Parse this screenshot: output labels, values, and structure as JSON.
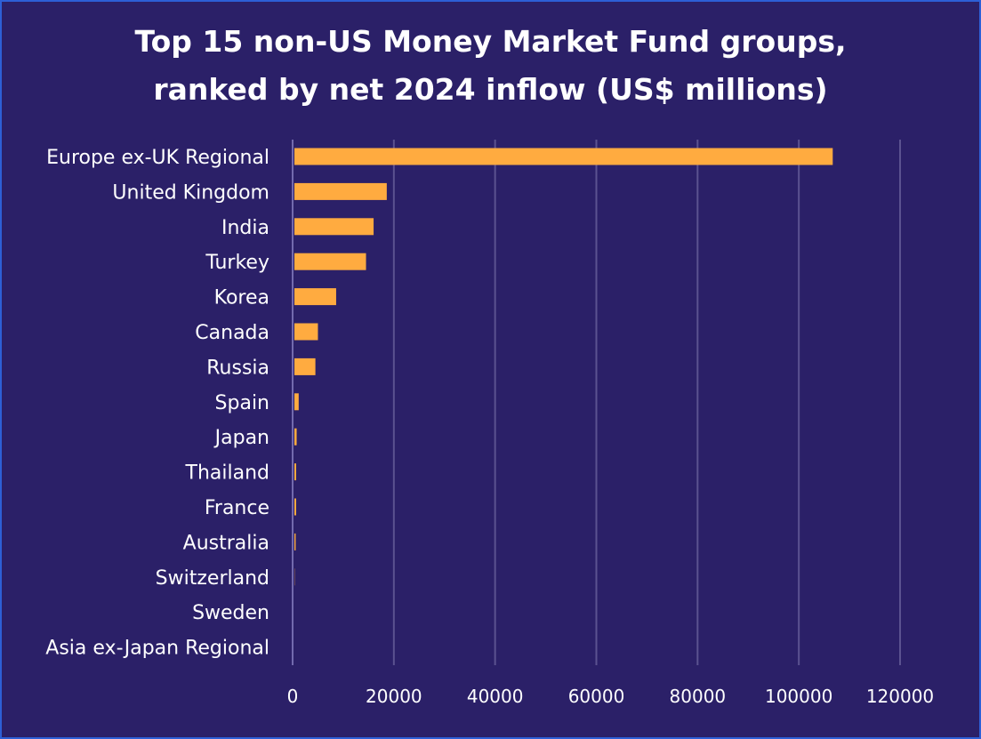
{
  "title_line1": "Top 15 non-US Money Market Fund groups,",
  "title_line2": "ranked by net 2024 inflow (US$ millions)",
  "colors": {
    "background": "#2b2068",
    "bar": "#ffab40",
    "gridline": "#5b5290",
    "axis": "#8a83c6",
    "border": "#2d5fd6",
    "text": "#ffffff"
  },
  "chart_data": {
    "type": "bar",
    "orientation": "horizontal",
    "title": "Top 15 non-US Money Market Fund groups, ranked by net 2024 inflow (US$ millions)",
    "xlabel": "",
    "ylabel": "",
    "xlim": [
      0,
      120000
    ],
    "xticks": [
      0,
      20000,
      40000,
      60000,
      80000,
      100000,
      120000
    ],
    "grid": "vertical",
    "legend": "none",
    "categories": [
      "Europe ex-UK Regional",
      "United Kingdom",
      "India",
      "Turkey",
      "Korea",
      "Canada",
      "Russia",
      "Spain",
      "Japan",
      "Thailand",
      "France",
      "Australia",
      "Switzerland",
      "Sweden",
      "Asia ex-Japan Regional"
    ],
    "values": [
      106700,
      18600,
      16000,
      14500,
      8600,
      5000,
      4500,
      1200,
      800,
      700,
      700,
      600,
      400,
      100,
      50
    ]
  }
}
